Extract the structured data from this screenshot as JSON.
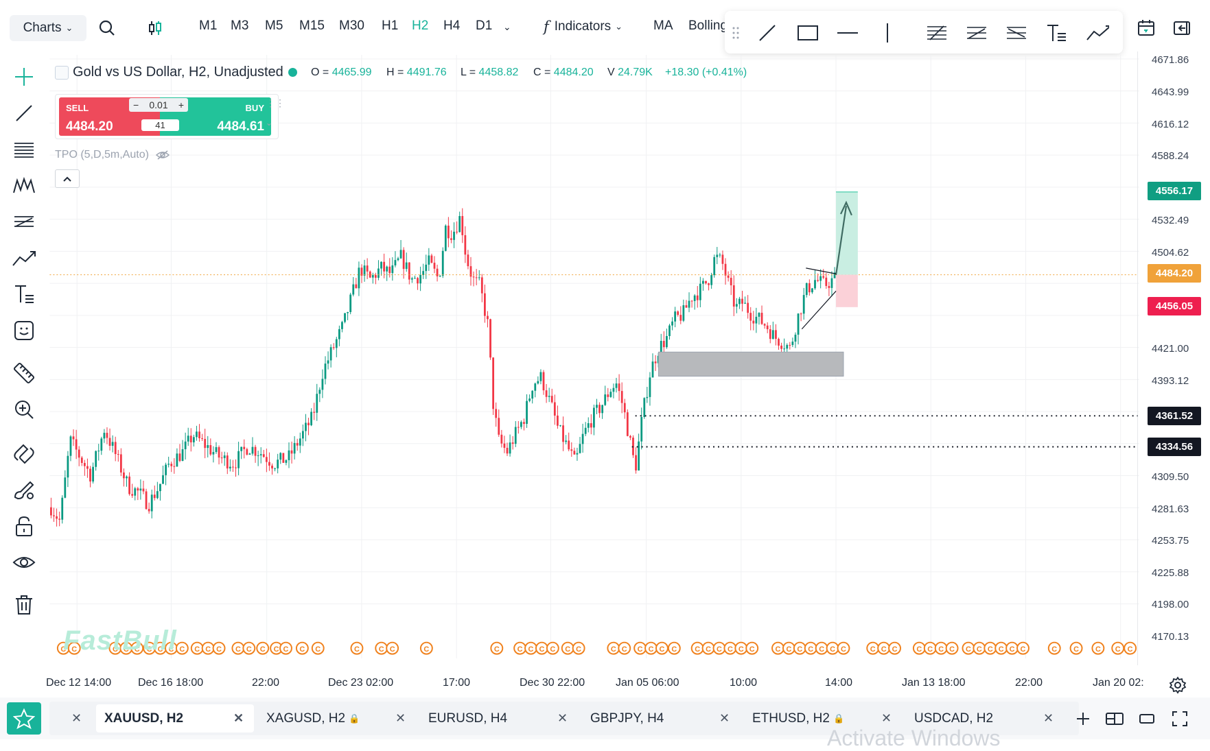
{
  "toolbar": {
    "charts_label": "Charts",
    "timeframes": [
      "M1",
      "M3",
      "M5",
      "M15",
      "M30",
      "H1",
      "H2",
      "H4",
      "D1"
    ],
    "active_timeframe": "H2",
    "indicators_label": "Indicators",
    "ma_label": "MA",
    "bollinger_label": "Bolling"
  },
  "symbol": {
    "title": "Gold vs US Dollar, H2, Unadjusted",
    "o_label": "O =",
    "o_value": "4465.99",
    "h_label": "H =",
    "h_value": "4491.76",
    "l_label": "L =",
    "l_value": "4458.82",
    "c_label": "C =",
    "c_value": "4484.20",
    "v_label": "V",
    "v_value": "24.79K",
    "change": "+18.30 (+0.41%)"
  },
  "trade_panel": {
    "sell_label": "SELL",
    "sell_price": "4484.20",
    "buy_label": "BUY",
    "buy_price": "4484.61",
    "quantity": "0.01",
    "spread": "41",
    "minus": "−",
    "plus": "+"
  },
  "indicator": {
    "tpo_label": "TPO (5,D,5m,Auto)"
  },
  "price_axis": {
    "labels": [
      "4671.86",
      "4643.99",
      "4616.12",
      "4588.24",
      "4532.49",
      "4504.62",
      "4421.00",
      "4393.12",
      "4309.50",
      "4281.63",
      "4253.75",
      "4225.88",
      "4198.00",
      "4170.13"
    ],
    "tags": [
      {
        "text": "4556.17",
        "color": "#109e82"
      },
      {
        "text": "4484.20",
        "color": "#f0a23a"
      },
      {
        "text": "4456.05",
        "color": "#ee1f4f"
      },
      {
        "text": "4361.52",
        "color": "#131722"
      },
      {
        "text": "4334.56",
        "color": "#131722"
      }
    ]
  },
  "time_axis": {
    "labels": [
      "Dec 12 14:00",
      "Dec 16 18:00",
      "22:00",
      "Dec 23 02:00",
      "17:00",
      "Dec 30 22:00",
      "Jan 05 06:00",
      "10:00",
      "14:00",
      "Jan 13 18:00",
      "22:00",
      "Jan 20 02:"
    ]
  },
  "tabs": [
    {
      "label": "XAUUSD, H2",
      "locked": false,
      "active": true
    },
    {
      "label": "XAGUSD, H2",
      "locked": true,
      "active": false
    },
    {
      "label": "EURUSD, H4",
      "locked": false,
      "active": false
    },
    {
      "label": "GBPJPY, H4",
      "locked": false,
      "active": false
    },
    {
      "label": "ETHUSD, H2",
      "locked": true,
      "active": false
    },
    {
      "label": "USDCAD, H2",
      "locked": false,
      "active": false
    }
  ],
  "watermark": "FastBull",
  "os_overlay": "Activate Windows",
  "event_marker_glyph": "C",
  "colors": {
    "accent": "#18b39a",
    "bull": "#089981",
    "bear": "#f23645",
    "current_price": "#f0a23a"
  }
}
